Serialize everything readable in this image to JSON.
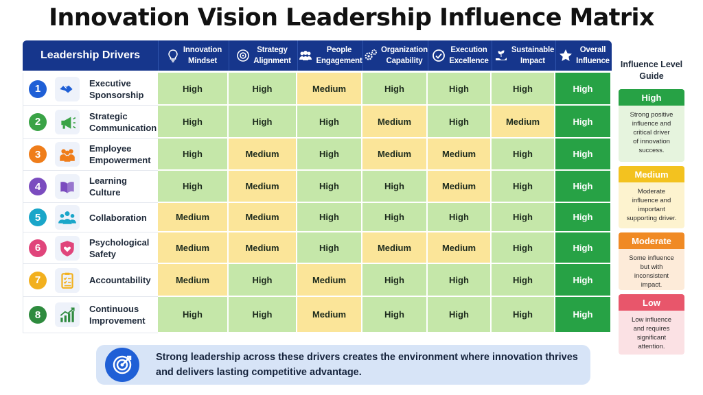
{
  "title": "Innovation Vision Leadership Influence Matrix",
  "matrix": {
    "drivers_header": "Leadership Drivers",
    "columns": [
      {
        "label": "Innovation\nMindset",
        "icon": "lightbulb-icon"
      },
      {
        "label": "Strategy\nAlignment",
        "icon": "target-icon"
      },
      {
        "label": "People\nEngagement",
        "icon": "people-icon"
      },
      {
        "label": "Organization\nCapability",
        "icon": "gears-icon"
      },
      {
        "label": "Execution\nExcellence",
        "icon": "check-circle-icon"
      },
      {
        "label": "Sustainable\nImpact",
        "icon": "plant-hand-icon"
      },
      {
        "label": "Overall\nInfluence",
        "icon": "star-icon"
      }
    ],
    "rows": [
      {
        "num": "1",
        "name": "Executive\nSponsorship",
        "icon": "handshake-icon",
        "color": "#1f5fd6",
        "values": [
          "High",
          "High",
          "Medium",
          "High",
          "High",
          "High",
          "High"
        ]
      },
      {
        "num": "2",
        "name": "Strategic\nCommunication",
        "icon": "megaphone-icon",
        "color": "#3aa346",
        "values": [
          "High",
          "High",
          "High",
          "Medium",
          "High",
          "Medium",
          "High"
        ]
      },
      {
        "num": "3",
        "name": "Employee\nEmpowerment",
        "icon": "team-icon",
        "color": "#ef7d1a",
        "values": [
          "High",
          "Medium",
          "High",
          "Medium",
          "Medium",
          "High",
          "High"
        ]
      },
      {
        "num": "4",
        "name": "Learning\nCulture",
        "icon": "book-icon",
        "color": "#7b4cbf",
        "values": [
          "High",
          "Medium",
          "High",
          "High",
          "Medium",
          "High",
          "High"
        ]
      },
      {
        "num": "5",
        "name": "Collaboration",
        "icon": "group-icon",
        "color": "#1aa6c9",
        "values": [
          "Medium",
          "Medium",
          "High",
          "High",
          "High",
          "High",
          "High"
        ]
      },
      {
        "num": "6",
        "name": "Psychological\nSafety",
        "icon": "shield-heart-icon",
        "color": "#e0457b",
        "values": [
          "Medium",
          "Medium",
          "High",
          "Medium",
          "Medium",
          "High",
          "High"
        ]
      },
      {
        "num": "7",
        "name": "Accountability",
        "icon": "checklist-icon",
        "color": "#f2b01e",
        "values": [
          "Medium",
          "High",
          "Medium",
          "High",
          "High",
          "High",
          "High"
        ]
      },
      {
        "num": "8",
        "name": "Continuous\nImprovement",
        "icon": "growth-chart-icon",
        "color": "#2e8b3e",
        "values": [
          "High",
          "High",
          "Medium",
          "High",
          "High",
          "High",
          "High"
        ]
      }
    ]
  },
  "legend": {
    "title": "Influence Level\nGuide",
    "items": [
      {
        "label": "High",
        "color": "#27a245",
        "bg": "#e6f4de",
        "desc": "Strong positive\ninfluence and\ncritical driver\nof innovation\nsuccess."
      },
      {
        "label": "Medium",
        "color": "#f3c21f",
        "bg": "#fdf3cf",
        "desc": "Moderate\ninfluence and\nimportant\nsupporting driver."
      },
      {
        "label": "Moderate",
        "color": "#f08a24",
        "bg": "#fdebd9",
        "desc": "Some influence\nbut with\ninconsistent\nimpact."
      },
      {
        "label": "Low",
        "color": "#e8566b",
        "bg": "#fbe1e4",
        "desc": "Low influence\nand requires\nsignificant\nattention."
      }
    ]
  },
  "banner": {
    "text": "Strong leadership across these drivers creates the environment where innovation thrives and delivers lasting competitive advantage.",
    "icon": "target-arrow-icon"
  }
}
